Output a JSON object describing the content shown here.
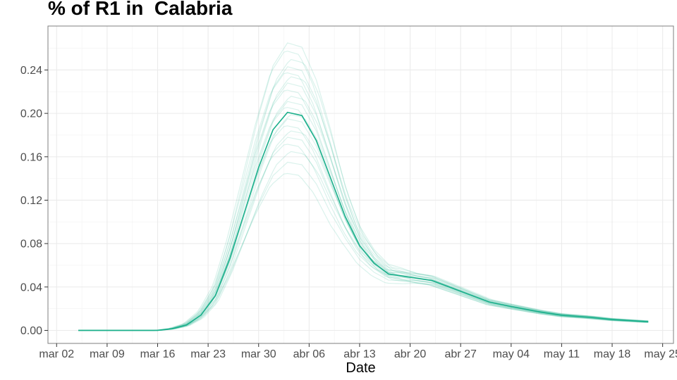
{
  "chart_data": {
    "type": "line",
    "title": "% of R1 in  Calabria",
    "xlabel": "Date",
    "ylabel": "",
    "x_ticks": [
      "mar 02",
      "mar 09",
      "mar 16",
      "mar 23",
      "mar 30",
      "abr 06",
      "abr 13",
      "abr 20",
      "abr 27",
      "may 04",
      "may 11",
      "may 18",
      "may 25"
    ],
    "y_ticks": [
      "0.00",
      "0.04",
      "0.08",
      "0.12",
      "0.16",
      "0.20",
      "0.24"
    ],
    "xlim_days_from_mar02": [
      -1.2,
      85.5
    ],
    "ylim": [
      -0.012,
      0.2805
    ],
    "grid": true,
    "legend": "none",
    "line_color": "#1aaf8b",
    "series": [
      {
        "role": "central estimate",
        "x": [
          "mar 05",
          "mar 16",
          "mar 18",
          "mar 20",
          "mar 22",
          "mar 24",
          "mar 26",
          "mar 28",
          "mar 30",
          "abr 01",
          "abr 03",
          "abr 05",
          "abr 07",
          "abr 09",
          "abr 11",
          "abr 13",
          "abr 15",
          "abr 17",
          "abr 20",
          "abr 23",
          "abr 27",
          "may 01",
          "may 04",
          "may 08",
          "may 11",
          "may 15",
          "may 18",
          "may 23"
        ],
        "y": [
          0.0,
          0.0,
          0.0015,
          0.005,
          0.014,
          0.032,
          0.066,
          0.108,
          0.15,
          0.185,
          0.201,
          0.198,
          0.175,
          0.14,
          0.105,
          0.078,
          0.062,
          0.052,
          0.049,
          0.046,
          0.036,
          0.026,
          0.022,
          0.017,
          0.014,
          0.012,
          0.01,
          0.008
        ]
      }
    ],
    "ensemble_peaks": [
      0.145,
      0.155,
      0.165,
      0.172,
      0.178,
      0.184,
      0.189,
      0.195,
      0.199,
      0.206,
      0.211,
      0.216,
      0.222,
      0.228,
      0.234,
      0.238,
      0.243,
      0.25,
      0.258,
      0.265
    ]
  }
}
